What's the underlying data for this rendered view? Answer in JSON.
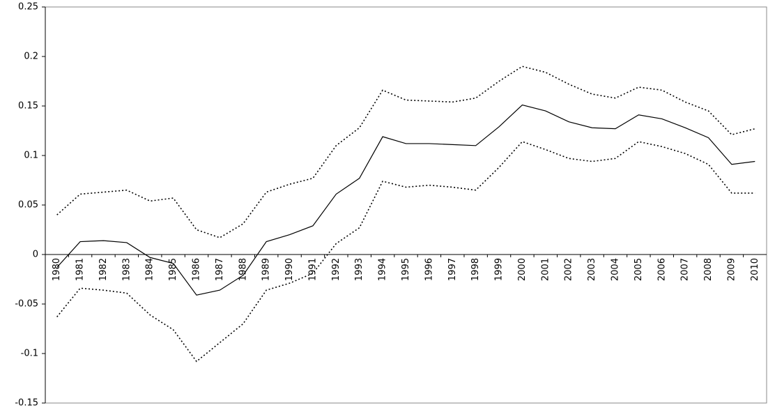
{
  "chart_data": {
    "type": "line",
    "categories": [
      "1980",
      "1981",
      "1982",
      "1983",
      "1984",
      "1985",
      "1986",
      "1987",
      "1988",
      "1989",
      "1990",
      "1991",
      "1992",
      "1993",
      "1994",
      "1995",
      "1996",
      "1997",
      "1998",
      "1999",
      "2000",
      "2001",
      "2002",
      "2003",
      "2004",
      "2005",
      "2006",
      "2007",
      "2008",
      "2009",
      "2010"
    ],
    "series": [
      {
        "color": "#000000",
        "style": "dotted",
        "values": [
          0.04,
          0.061,
          0.063,
          0.065,
          0.054,
          0.057,
          0.025,
          0.017,
          0.031,
          0.063,
          0.071,
          0.077,
          0.11,
          0.128,
          0.166,
          0.156,
          0.155,
          0.154,
          0.158,
          0.175,
          0.19,
          0.184,
          0.172,
          0.162,
          0.158,
          0.169,
          0.166,
          0.154,
          0.145,
          0.121,
          0.127
        ]
      },
      {
        "color": "#000000",
        "style": "solid",
        "values": [
          -0.013,
          0.013,
          0.014,
          0.012,
          -0.003,
          -0.009,
          -0.041,
          -0.036,
          -0.021,
          0.013,
          0.02,
          0.029,
          0.061,
          0.077,
          0.119,
          0.112,
          0.112,
          0.111,
          0.11,
          0.129,
          0.151,
          0.145,
          0.134,
          0.128,
          0.127,
          0.141,
          0.137,
          0.128,
          0.118,
          0.091,
          0.094
        ]
      },
      {
        "color": "#000000",
        "style": "dotted",
        "values": [
          -0.063,
          -0.034,
          -0.036,
          -0.039,
          -0.061,
          -0.076,
          -0.108,
          -0.089,
          -0.07,
          -0.036,
          -0.029,
          -0.019,
          0.011,
          0.027,
          0.074,
          0.068,
          0.07,
          0.068,
          0.065,
          0.088,
          0.114,
          0.106,
          0.097,
          0.094,
          0.097,
          0.114,
          0.109,
          0.102,
          0.091,
          0.062,
          0.062
        ]
      }
    ],
    "ylim": [
      -0.15,
      0.25
    ],
    "yticks": [
      -0.15,
      -0.1,
      -0.05,
      0,
      0.05,
      0.1,
      0.15,
      0.2,
      0.25
    ],
    "grid": false
  }
}
